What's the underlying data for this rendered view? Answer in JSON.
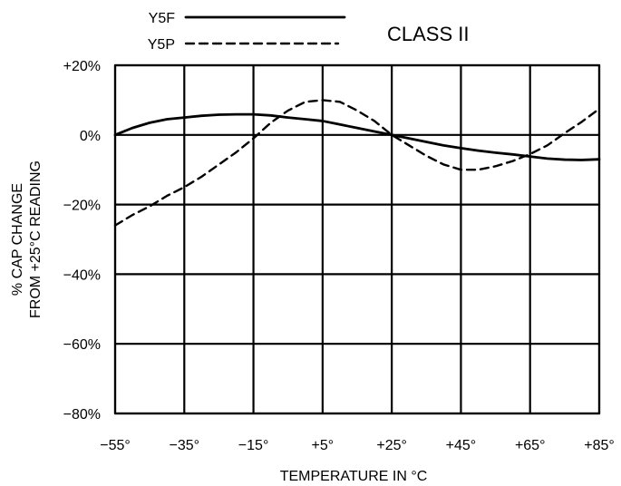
{
  "chart_data": {
    "type": "line",
    "title": "CLASS II",
    "xlabel": "TEMPERATURE IN °C",
    "ylabel_lines": [
      "% CAP CHANGE",
      "FROM +25°C READING"
    ],
    "x_tick_labels": [
      "−55°",
      "−35°",
      "−15°",
      "+5°",
      "+25°",
      "+45°",
      "+65°",
      "+85°"
    ],
    "y_tick_labels": [
      "+20%",
      "0%",
      "−20%",
      "−40%",
      "−60%",
      "−80%"
    ],
    "x_ticks": [
      -55,
      -35,
      -15,
      5,
      25,
      45,
      65,
      85
    ],
    "y_ticks": [
      20,
      0,
      -20,
      -40,
      -60,
      -80
    ],
    "xlim": [
      -55,
      85
    ],
    "ylim": [
      -80,
      20
    ],
    "grid": true,
    "legend": "top-left",
    "series": [
      {
        "name": "Y5F",
        "line_style": "solid",
        "x": [
          -55,
          -50,
          -45,
          -40,
          -35,
          -30,
          -25,
          -20,
          -15,
          -10,
          -5,
          0,
          5,
          10,
          15,
          20,
          25,
          30,
          35,
          40,
          45,
          50,
          55,
          60,
          65,
          70,
          75,
          80,
          85
        ],
        "y": [
          0,
          2,
          3.5,
          4.5,
          5,
          5.5,
          5.8,
          5.9,
          5.9,
          5.6,
          5,
          4.5,
          4,
          3,
          2,
          1,
          0,
          -1,
          -2,
          -3,
          -3.8,
          -4.5,
          -5.1,
          -5.6,
          -6.2,
          -6.8,
          -7.1,
          -7.2,
          -7.0
        ]
      },
      {
        "name": "Y5P",
        "line_style": "dashed",
        "x": [
          -55,
          -50,
          -45,
          -40,
          -35,
          -30,
          -25,
          -20,
          -15,
          -10,
          -5,
          0,
          5,
          10,
          15,
          20,
          25,
          30,
          35,
          40,
          45,
          50,
          55,
          60,
          65,
          70,
          75,
          80,
          85
        ],
        "y": [
          -26,
          -23,
          -20.5,
          -17.5,
          -15,
          -12,
          -8.5,
          -5,
          -1,
          3.5,
          7,
          9.5,
          10,
          9.5,
          7,
          4,
          0,
          -3,
          -6,
          -8.5,
          -10,
          -10,
          -9,
          -7.5,
          -5.5,
          -3,
          0.5,
          3.8,
          7.5
        ]
      }
    ]
  }
}
